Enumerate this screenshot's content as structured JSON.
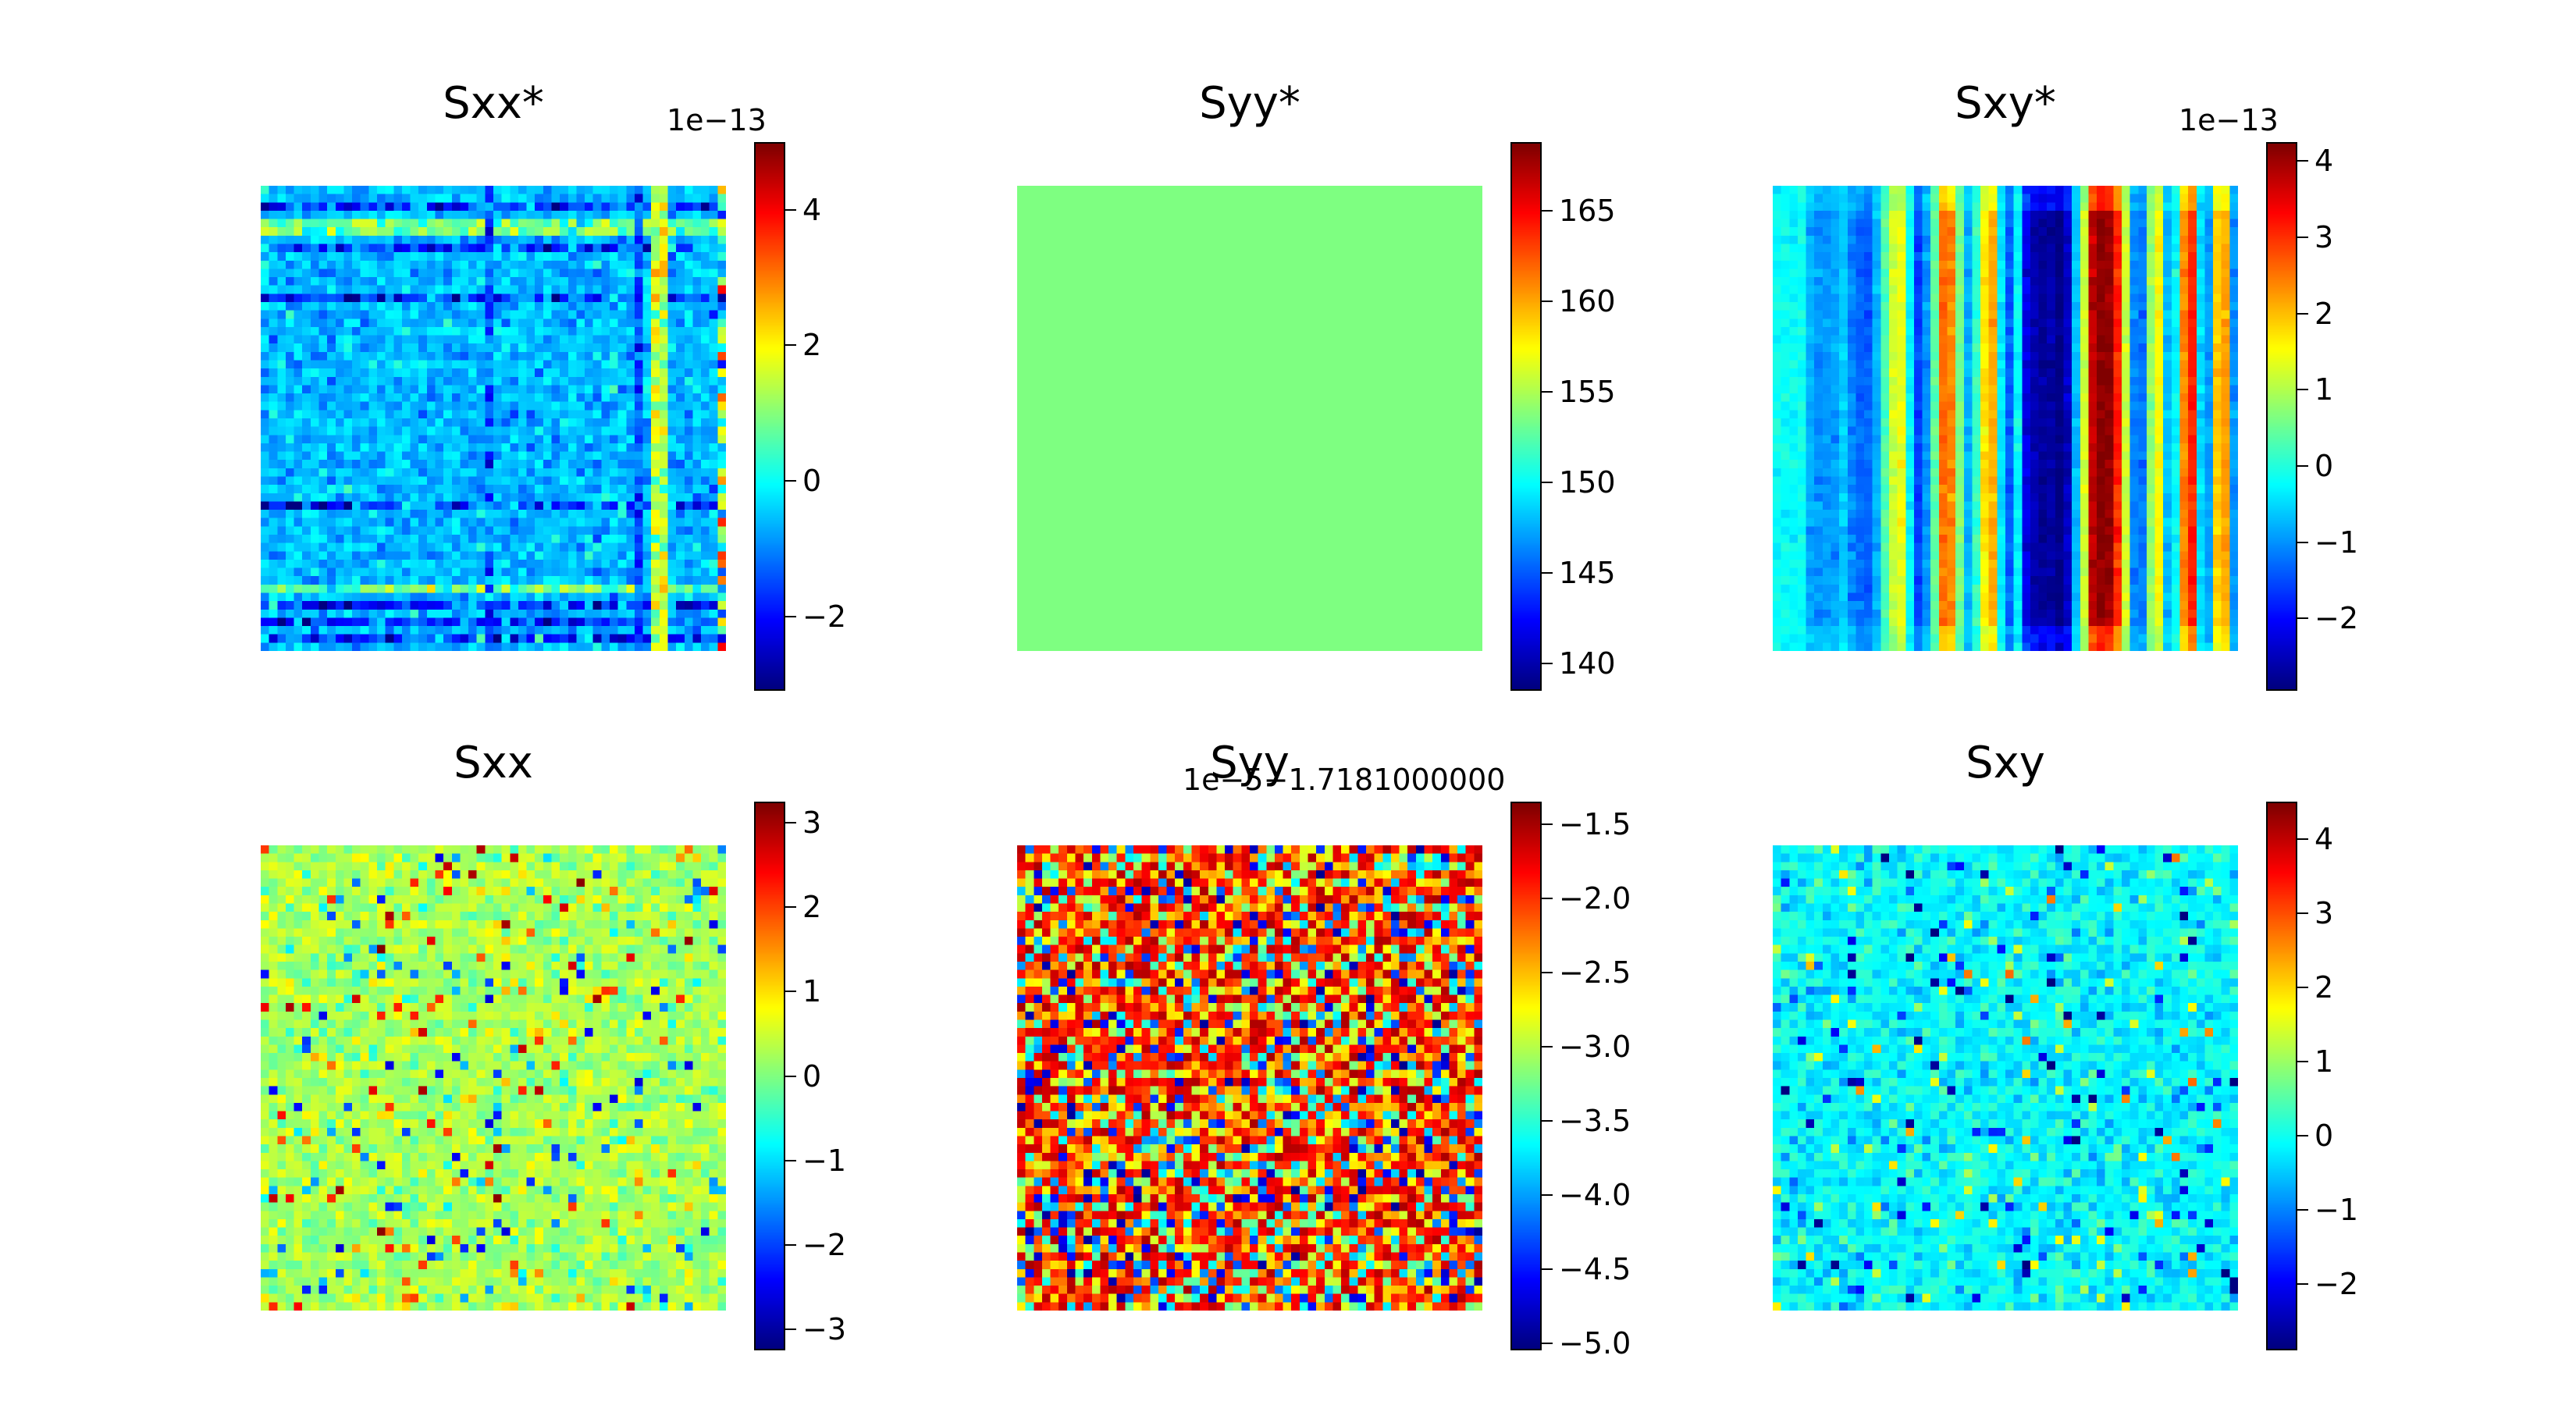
{
  "chart_data": [
    {
      "type": "heatmap",
      "title": "Sxx*",
      "colormap": "jet",
      "colorbar": {
        "vmin": -3.1,
        "vmax": 5.0,
        "ticks": [
          -2,
          0,
          2,
          4
        ],
        "tick_labels": [
          "−2",
          "0",
          "2",
          "4"
        ],
        "offset_label": "1e−13"
      },
      "grid_size": [
        56,
        56
      ],
      "pattern": "stripes-both",
      "pattern_note": "near-zero field with horizontal and vertical bands of noise"
    },
    {
      "type": "heatmap",
      "title": "Syy*",
      "colormap": "jet",
      "colorbar": {
        "vmin": 138.5,
        "vmax": 168.8,
        "ticks": [
          140,
          145,
          150,
          155,
          160,
          165
        ],
        "tick_labels": [
          "140",
          "145",
          "150",
          "155",
          "160",
          "165"
        ],
        "offset_label": ""
      },
      "grid_size": [
        56,
        56
      ],
      "pattern": "uniform",
      "uniform_value": 153.6
    },
    {
      "type": "heatmap",
      "title": "Sxy*",
      "colormap": "jet",
      "colorbar": {
        "vmin": -2.95,
        "vmax": 4.25,
        "ticks": [
          -2,
          -1,
          0,
          1,
          2,
          3,
          4
        ],
        "tick_labels": [
          "−2",
          "−1",
          "0",
          "1",
          "2",
          "3",
          "4"
        ],
        "offset_label": "1e−13"
      },
      "grid_size": [
        56,
        56
      ],
      "pattern": "vertical-stripes",
      "column_profile": [
        -0.2,
        -0.3,
        -0.4,
        -0.6,
        -0.8,
        -1.0,
        -1.0,
        -0.9,
        -0.6,
        -1.1,
        -1.3,
        -1.4,
        -0.8,
        0.3,
        1.2,
        1.4,
        -0.3,
        -1.6,
        -1.0,
        0.4,
        2.6,
        2.4,
        0.6,
        -0.8,
        0.1,
        1.7,
        2.1,
        -0.4,
        -1.4,
        -0.3,
        -2.2,
        -2.6,
        -2.8,
        -2.7,
        -2.9,
        -2.5,
        -0.7,
        1.2,
        3.8,
        4.2,
        4.1,
        3.1,
        1.2,
        -1.1,
        -1.2,
        0.8,
        1.5,
        -0.7,
        -0.3,
        2.4,
        3.1,
        -0.5,
        -0.9,
        1.9,
        2.2,
        -1.0
      ]
    },
    {
      "type": "heatmap",
      "title": "Sxx",
      "colormap": "jet",
      "colorbar": {
        "vmin": -3.25,
        "vmax": 3.25,
        "ticks": [
          -3,
          -2,
          -1,
          0,
          1,
          2,
          3
        ],
        "tick_labels": [
          "−3",
          "−2",
          "−1",
          "0",
          "1",
          "2",
          "3"
        ],
        "offset_label": ""
      },
      "grid_size": [
        56,
        56
      ],
      "pattern": "sparse-noise",
      "background_value": 0.25
    },
    {
      "type": "heatmap",
      "title": "Syy",
      "colormap": "jet",
      "colorbar": {
        "vmin": -5.05,
        "vmax": -1.35,
        "ticks": [
          -5.0,
          -4.5,
          -4.0,
          -3.5,
          -3.0,
          -2.5,
          -2.0,
          -1.5
        ],
        "tick_labels": [
          "−5.0",
          "−4.5",
          "−4.0",
          "−3.5",
          "−3.0",
          "−2.5",
          "−2.0",
          "−1.5"
        ],
        "offset_label": "1e−5−1.7181000000"
      },
      "grid_size": [
        56,
        56
      ],
      "pattern": "dense-noise"
    },
    {
      "type": "heatmap",
      "title": "Sxy",
      "colormap": "jet",
      "colorbar": {
        "vmin": -2.9,
        "vmax": 4.5,
        "ticks": [
          -2,
          -1,
          0,
          1,
          2,
          3,
          4
        ],
        "tick_labels": [
          "−2",
          "−1",
          "0",
          "1",
          "2",
          "3",
          "4"
        ],
        "offset_label": ""
      },
      "grid_size": [
        56,
        56
      ],
      "pattern": "sparse-noise",
      "background_value": -0.15
    }
  ]
}
